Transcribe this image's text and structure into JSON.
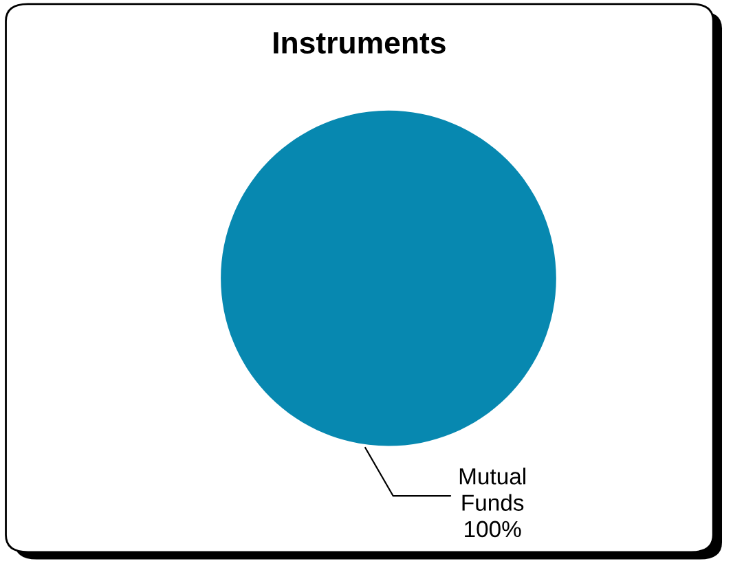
{
  "chart_data": {
    "type": "pie",
    "title": "Instruments",
    "categories": [
      "Mutual Funds"
    ],
    "values": [
      100
    ],
    "colors": [
      "#0788b0"
    ],
    "value_labels": [
      "100%"
    ]
  }
}
